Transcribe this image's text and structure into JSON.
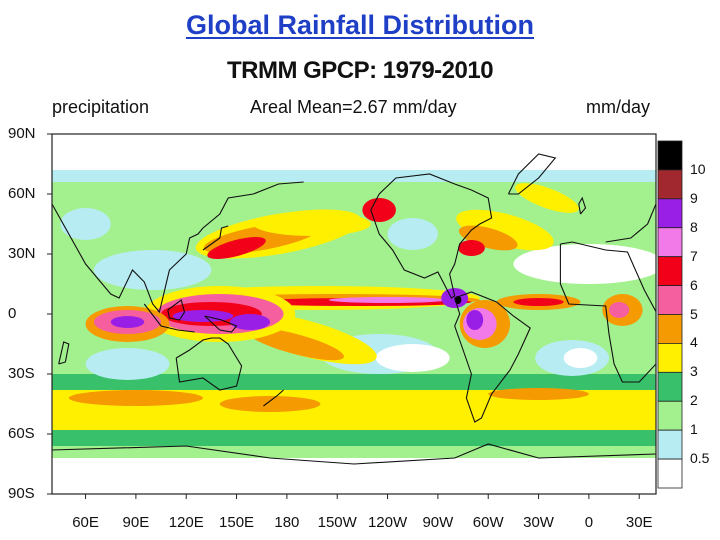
{
  "slide": {
    "title": "Global Rainfall Distribution"
  },
  "figure": {
    "title": "TRMM GPCP: 1979-2010",
    "left_label": "precipitation",
    "center_label": "Areal Mean=2.67 mm/day",
    "right_label": "mm/day"
  },
  "axes": {
    "lat_labels": [
      "90N",
      "60N",
      "30N",
      "0",
      "30S",
      "60S",
      "90S"
    ],
    "lon_labels": [
      "60E",
      "90E",
      "120E",
      "150E",
      "180",
      "150W",
      "120W",
      "90W",
      "60W",
      "30W",
      "0",
      "30E"
    ]
  },
  "colorbar": {
    "labels": [
      "10",
      "9",
      "8",
      "7",
      "6",
      "5",
      "4",
      "3",
      "2",
      "1",
      "0.5"
    ],
    "colors": [
      "#000000",
      "#a0282e",
      "#9a1fe6",
      "#f27ae8",
      "#f2001a",
      "#f55fa0",
      "#f59a00",
      "#fff000",
      "#39c06b",
      "#a3f08f",
      "#b7ecf3",
      "#ffffff"
    ]
  },
  "map": {
    "lat_range": [
      -90,
      90
    ],
    "lon_range": [
      40,
      400
    ],
    "level_bounds": [
      0.5,
      1,
      2,
      3,
      4,
      5,
      6,
      7,
      8,
      9,
      10
    ]
  }
}
